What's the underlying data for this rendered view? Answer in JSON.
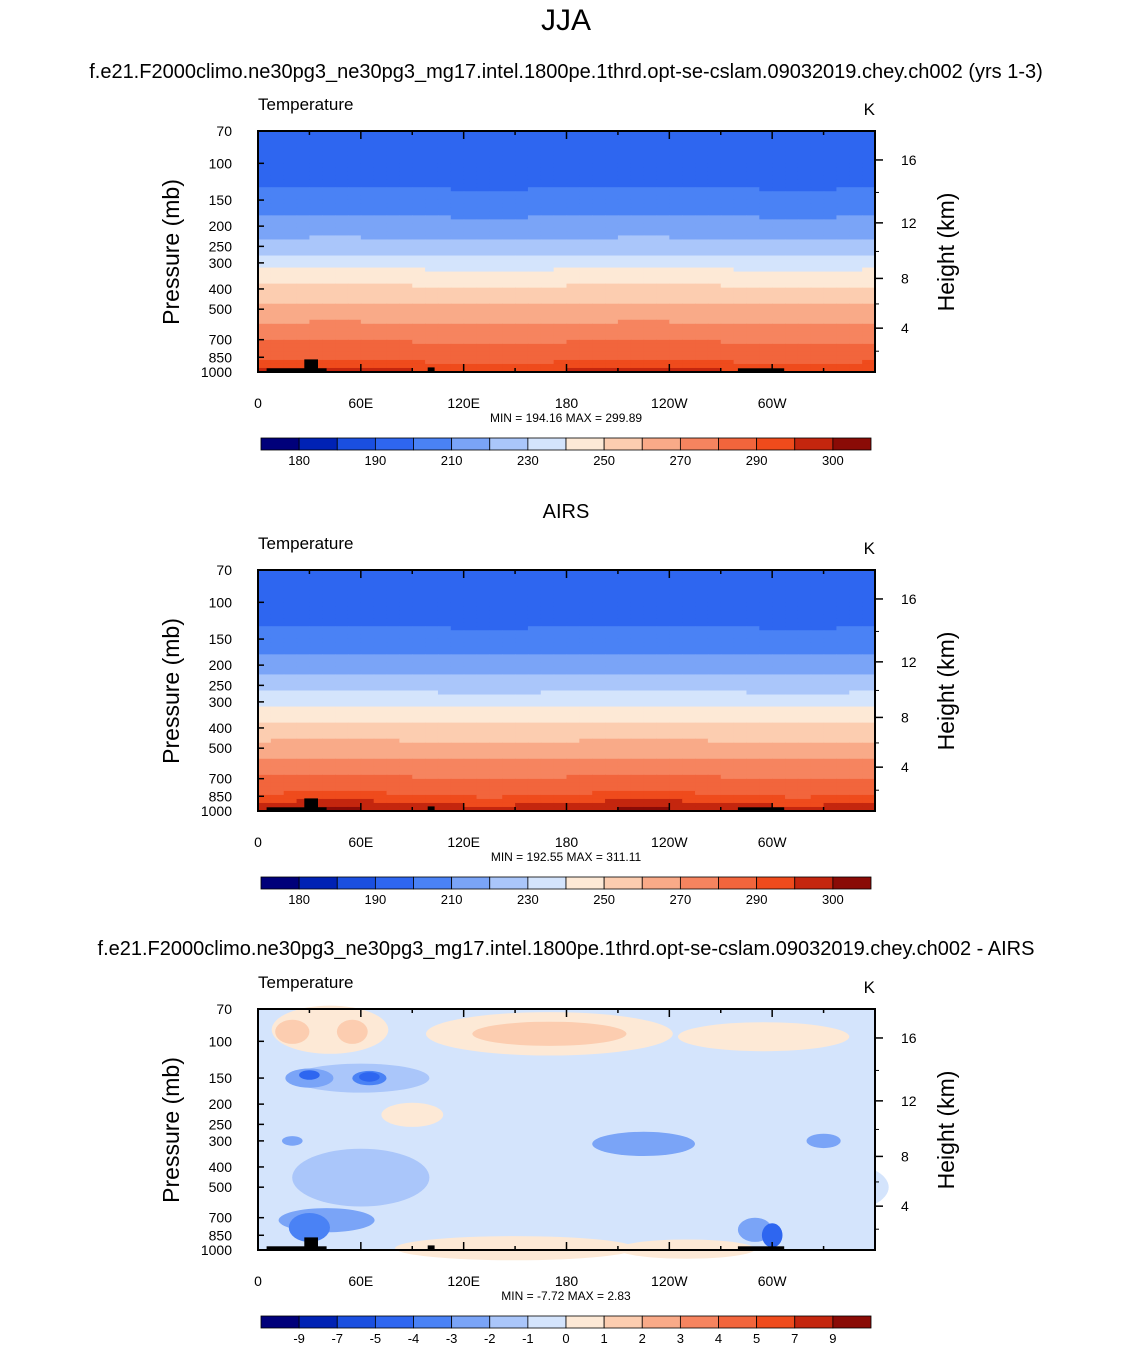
{
  "figure": {
    "title": "JJA",
    "panel_titles": [
      "f.e21.F2000climo.ne30pg3_ne30pg3_mg17.intel.1800pe.1thrd.opt-se-cslam.09032019.chey.ch002 (yrs 1-3)",
      "AIRS",
      "f.e21.F2000climo.ne30pg3_ne30pg3_mg17.intel.1800pe.1thrd.opt-se-cslam.09032019.chey.ch002 - AIRS"
    ]
  },
  "chart_data": [
    {
      "type": "heatmap",
      "variable": "Temperature",
      "units": "K",
      "xlabel": "",
      "ylabel": "Pressure (mb)",
      "ylabel_right": "Height (km)",
      "x_ticks": [
        "0",
        "60E",
        "120E",
        "180",
        "120W",
        "60W"
      ],
      "y_ticks": [
        "70",
        "100",
        "150",
        "200",
        "250",
        "300",
        "400",
        "500",
        "700",
        "850",
        "1000"
      ],
      "y_ticks_right": [
        "16",
        "12",
        "8",
        "4"
      ],
      "stats": "MIN = 194.16  MAX = 299.89",
      "colorbar_labels": [
        "180",
        "190",
        "210",
        "230",
        "250",
        "270",
        "290",
        "300"
      ],
      "ylim": [
        1000,
        70
      ],
      "xlim": [
        0,
        360
      ],
      "zonal_mean_profile_K": [
        {
          "p": 70,
          "t": 198
        },
        {
          "p": 100,
          "t": 194
        },
        {
          "p": 150,
          "t": 203
        },
        {
          "p": 200,
          "t": 214
        },
        {
          "p": 250,
          "t": 224
        },
        {
          "p": 300,
          "t": 236
        },
        {
          "p": 400,
          "t": 252
        },
        {
          "p": 500,
          "t": 263
        },
        {
          "p": 700,
          "t": 279
        },
        {
          "p": 850,
          "t": 288
        },
        {
          "p": 1000,
          "t": 296
        }
      ]
    },
    {
      "type": "heatmap",
      "variable": "Temperature",
      "units": "K",
      "xlabel": "",
      "ylabel": "Pressure (mb)",
      "ylabel_right": "Height (km)",
      "x_ticks": [
        "0",
        "60E",
        "120E",
        "180",
        "120W",
        "60W"
      ],
      "y_ticks": [
        "70",
        "100",
        "150",
        "200",
        "250",
        "300",
        "400",
        "500",
        "700",
        "850",
        "1000"
      ],
      "y_ticks_right": [
        "16",
        "12",
        "8",
        "4"
      ],
      "stats": "MIN = 192.55  MAX = 311.11",
      "colorbar_labels": [
        "180",
        "190",
        "210",
        "230",
        "250",
        "270",
        "290",
        "300"
      ],
      "ylim": [
        1000,
        70
      ],
      "xlim": [
        0,
        360
      ],
      "zonal_mean_profile_K": [
        {
          "p": 70,
          "t": 199
        },
        {
          "p": 100,
          "t": 194
        },
        {
          "p": 150,
          "t": 203
        },
        {
          "p": 200,
          "t": 215
        },
        {
          "p": 250,
          "t": 225
        },
        {
          "p": 300,
          "t": 237
        },
        {
          "p": 400,
          "t": 253
        },
        {
          "p": 500,
          "t": 264
        },
        {
          "p": 700,
          "t": 281
        },
        {
          "p": 850,
          "t": 291
        },
        {
          "p": 1000,
          "t": 300
        }
      ]
    },
    {
      "type": "heatmap",
      "variable": "Temperature",
      "units": "K",
      "xlabel": "",
      "ylabel": "Pressure (mb)",
      "ylabel_right": "Height (km)",
      "x_ticks": [
        "0",
        "60E",
        "120E",
        "180",
        "120W",
        "60W"
      ],
      "y_ticks": [
        "70",
        "100",
        "150",
        "200",
        "250",
        "300",
        "400",
        "500",
        "700",
        "850",
        "1000"
      ],
      "y_ticks_right": [
        "16",
        "12",
        "8",
        "4"
      ],
      "stats": "MIN =  -7.72  MAX =   2.83",
      "colorbar_labels": [
        "-9",
        "-7",
        "-5",
        "-4",
        "-3",
        "-2",
        "-1",
        "0",
        "1",
        "2",
        "3",
        "4",
        "5",
        "7",
        "9"
      ],
      "ylim": [
        1000,
        70
      ],
      "xlim": [
        0,
        360
      ]
    }
  ],
  "colors": {
    "abs_scale": [
      "#00007a",
      "#0022b4",
      "#1a4fe0",
      "#2e66f0",
      "#4a82f5",
      "#7aa4f7",
      "#aac6fa",
      "#d4e4fc",
      "#fde9d6",
      "#fccdb0",
      "#f9aa88",
      "#f6845f",
      "#f2653c",
      "#ef4b1c",
      "#c4260e",
      "#8a0b06"
    ],
    "diff_scale": [
      "#00007a",
      "#0022b4",
      "#1a4fe0",
      "#2e66f0",
      "#4a82f5",
      "#7aa4f7",
      "#aac6fa",
      "#d4e4fc",
      "#fde9d6",
      "#fccdb0",
      "#f9aa88",
      "#f6845f",
      "#f2653c",
      "#ef4b1c",
      "#c4260e",
      "#8a0b06"
    ],
    "diff_background": "#d4e4fc",
    "terrain": "#000000"
  }
}
